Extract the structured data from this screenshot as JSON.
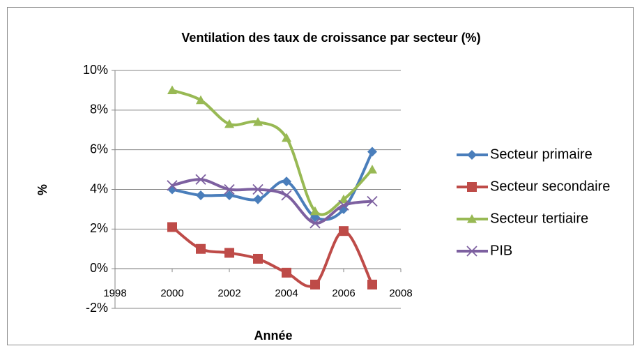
{
  "chart_data": {
    "type": "line",
    "title": "Ventilation des taux de croissance par secteur (%)",
    "x_label": "Année",
    "y_label": "%",
    "x": [
      2000,
      2001,
      2002,
      2003,
      2004,
      2005,
      2006,
      2007
    ],
    "xlim": [
      1998,
      2008
    ],
    "xticks": [
      1998,
      2000,
      2002,
      2004,
      2006,
      2008
    ],
    "ylim": [
      -2,
      10
    ],
    "yticks": [
      {
        "value": -2,
        "label": "-2%"
      },
      {
        "value": 0,
        "label": "0%"
      },
      {
        "value": 2,
        "label": "2%"
      },
      {
        "value": 4,
        "label": "4%"
      },
      {
        "value": 6,
        "label": "6%"
      },
      {
        "value": 8,
        "label": "8%"
      },
      {
        "value": 10,
        "label": "10%"
      }
    ],
    "grid": true,
    "smooth": true,
    "legend": "right",
    "series": [
      {
        "name": "Secteur primaire",
        "color": "#4a7ebb",
        "marker": "diamond",
        "values": [
          4.0,
          3.7,
          3.7,
          3.5,
          4.4,
          2.6,
          3.0,
          5.9
        ]
      },
      {
        "name": "Secteur secondaire",
        "color": "#be4b48",
        "marker": "square",
        "values": [
          2.1,
          1.0,
          0.8,
          0.5,
          -0.2,
          -0.8,
          1.9,
          -0.8
        ]
      },
      {
        "name": "Secteur tertiaire",
        "color": "#98b954",
        "marker": "triangle",
        "values": [
          9.0,
          8.5,
          7.3,
          7.4,
          6.6,
          2.9,
          3.5,
          5.0
        ]
      },
      {
        "name": "PIB",
        "color": "#7d60a0",
        "marker": "x",
        "values": [
          4.2,
          4.5,
          4.0,
          4.0,
          3.7,
          2.3,
          3.2,
          3.4
        ]
      }
    ]
  }
}
